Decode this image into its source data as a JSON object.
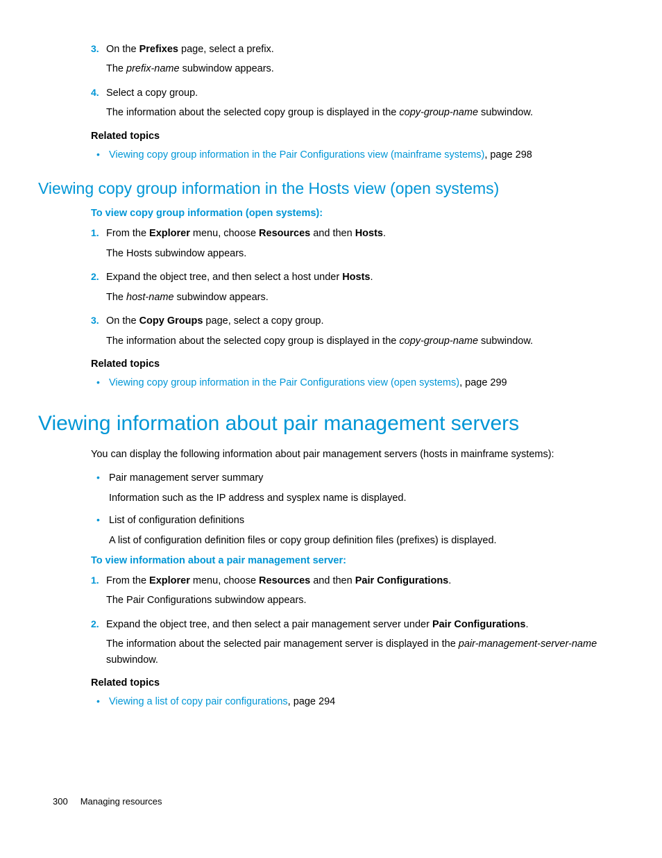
{
  "colors": {
    "link": "#0096d6",
    "heading": "#0096d6",
    "text": "#000000",
    "background": "#ffffff"
  },
  "typography": {
    "body_font_size": 14.5,
    "h1_font_size": 30,
    "h2_font_size": 23,
    "footer_font_size": 13,
    "font_family": "Arial"
  },
  "sec1": {
    "step3_num": "3.",
    "step3_pre": "On the ",
    "step3_bold": "Prefixes",
    "step3_post": " page, select a prefix.",
    "step3_sub_pre": "The ",
    "step3_sub_it": "prefix-name",
    "step3_sub_post": " subwindow appears.",
    "step4_num": "4.",
    "step4_text": "Select a copy group.",
    "step4_sub_pre": "The information about the selected copy group is displayed in the ",
    "step4_sub_it": "copy-group-name",
    "step4_sub_post": " subwindow.",
    "related": "Related topics",
    "link1": "Viewing copy group information in the Pair Configurations view (mainframe systems)",
    "link1_page": ", page 298"
  },
  "sec2": {
    "heading": "Viewing copy group information in the Hosts view (open systems)",
    "sub": "To view copy group information (open systems):",
    "step1_num": "1.",
    "step1_a": "From the ",
    "step1_b": "Explorer",
    "step1_c": " menu, choose ",
    "step1_d": "Resources",
    "step1_e": " and then ",
    "step1_f": "Hosts",
    "step1_g": ".",
    "step1_sub": "The Hosts subwindow appears.",
    "step2_num": "2.",
    "step2_a": "Expand the object tree, and then select a host under ",
    "step2_b": "Hosts",
    "step2_c": ".",
    "step2_sub_a": "The ",
    "step2_sub_b": "host-name",
    "step2_sub_c": " subwindow appears.",
    "step3_num": "3.",
    "step3_a": "On the ",
    "step3_b": "Copy Groups",
    "step3_c": " page, select a copy group.",
    "step3_sub_a": "The information about the selected copy group is displayed in the ",
    "step3_sub_b": "copy-group-name",
    "step3_sub_c": " subwindow.",
    "related": "Related topics",
    "link1": "Viewing copy group information in the Pair Configurations view (open systems)",
    "link1_page": ", page 299"
  },
  "sec3": {
    "heading": "Viewing information about pair management servers",
    "intro": "You can display the following information about pair management servers (hosts in mainframe systems):",
    "b1": "Pair management server summary",
    "b1_sub": "Information such as the IP address and sysplex name is displayed.",
    "b2": "List of configuration definitions",
    "b2_sub": "A list of configuration definition files or copy group definition files (prefixes) is displayed.",
    "sub": "To view information about a pair management server:",
    "step1_num": "1.",
    "step1_a": "From the ",
    "step1_b": "Explorer",
    "step1_c": " menu, choose ",
    "step1_d": "Resources",
    "step1_e": " and then ",
    "step1_f": "Pair Configurations",
    "step1_g": ".",
    "step1_sub": "The Pair Configurations subwindow appears.",
    "step2_num": "2.",
    "step2_a": "Expand the object tree, and then select a pair management server under ",
    "step2_b": "Pair Configurations",
    "step2_c": ".",
    "step2_sub_a": "The information about the selected pair management server is displayed in the ",
    "step2_sub_b": "pair-management-server-name",
    "step2_sub_c": " subwindow.",
    "related": "Related topics",
    "link1": "Viewing a list of copy pair configurations",
    "link1_page": ", page 294"
  },
  "footer": {
    "page": "300",
    "chapter": "Managing resources"
  }
}
